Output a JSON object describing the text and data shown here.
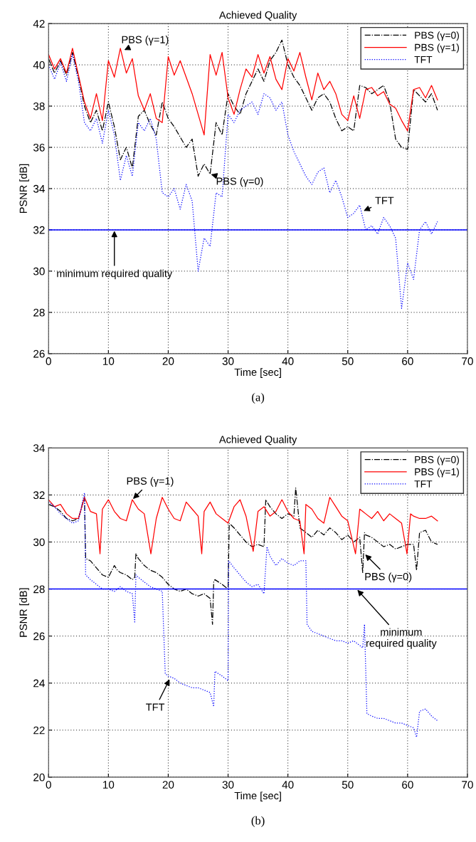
{
  "chart_data": [
    {
      "type": "line",
      "title": "Achieved Quality",
      "xlabel": "Time [sec]",
      "ylabel": "PSNR [dB]",
      "xlim": [
        0,
        70
      ],
      "xticks": [
        0,
        10,
        20,
        30,
        40,
        50,
        60,
        70
      ],
      "ylim": [
        26,
        42
      ],
      "yticks": [
        26,
        28,
        30,
        32,
        34,
        36,
        38,
        40,
        42
      ],
      "grid": true,
      "legend": "top right",
      "series": [
        {
          "name": "PBS (γ=0)",
          "color": "#000000",
          "line_style": "dashdot",
          "x": [
            0,
            1,
            2,
            3,
            4,
            5,
            6,
            7,
            8,
            9,
            10,
            11,
            12,
            13,
            14,
            15,
            16,
            17,
            18,
            19,
            20,
            21,
            22,
            23,
            24,
            25,
            26,
            27,
            28,
            29,
            30,
            31,
            32,
            33,
            34,
            35,
            36,
            37,
            38,
            39,
            40,
            41,
            42,
            43,
            44,
            45,
            46,
            47,
            48,
            49,
            50,
            51,
            52,
            53,
            54,
            55,
            56,
            57,
            58,
            59,
            60,
            61,
            62,
            63,
            64,
            65
          ],
          "values": [
            40.3,
            39.6,
            40.2,
            39.5,
            40.6,
            39.4,
            38.0,
            37.2,
            37.8,
            36.8,
            38.2,
            37.0,
            35.4,
            36.0,
            35.0,
            37.5,
            37.8,
            37.1,
            36.6,
            38.2,
            37.4,
            37.0,
            36.5,
            36.0,
            36.4,
            34.6,
            35.2,
            34.7,
            37.2,
            36.6,
            38.6,
            38.0,
            37.6,
            38.6,
            39.2,
            39.8,
            39.2,
            40.2,
            40.6,
            41.2,
            40.0,
            39.4,
            39.0,
            38.4,
            37.8,
            38.4,
            38.6,
            38.2,
            37.4,
            36.8,
            37.0,
            36.8,
            39.0,
            38.9,
            38.6,
            38.8,
            39.0,
            38.2,
            36.4,
            36.0,
            35.9,
            38.8,
            38.5,
            38.2,
            38.6,
            37.8
          ]
        },
        {
          "name": "PBS (γ=1)",
          "color": "#ff0000",
          "line_style": "solid",
          "x": [
            0,
            1,
            2,
            3,
            4,
            5,
            6,
            7,
            8,
            9,
            10,
            11,
            12,
            13,
            14,
            15,
            16,
            17,
            18,
            19,
            20,
            21,
            22,
            23,
            24,
            25,
            26,
            27,
            28,
            29,
            30,
            31,
            32,
            33,
            34,
            35,
            36,
            37,
            38,
            39,
            40,
            41,
            42,
            43,
            44,
            45,
            46,
            47,
            48,
            49,
            50,
            51,
            52,
            53,
            54,
            55,
            56,
            57,
            58,
            59,
            60,
            61,
            62,
            63,
            64,
            65
          ],
          "values": [
            40.5,
            39.8,
            40.3,
            39.6,
            40.8,
            39.5,
            38.2,
            37.4,
            38.6,
            37.3,
            40.2,
            39.4,
            40.8,
            39.6,
            40.3,
            38.5,
            37.8,
            38.6,
            37.4,
            37.2,
            40.4,
            39.5,
            40.2,
            39.4,
            38.6,
            37.6,
            36.6,
            40.5,
            39.5,
            40.6,
            38.4,
            37.6,
            38.8,
            39.8,
            39.4,
            40.5,
            39.6,
            40.4,
            39.3,
            38.8,
            40.3,
            39.7,
            40.6,
            39.4,
            38.3,
            39.6,
            38.8,
            39.2,
            38.6,
            37.6,
            37.3,
            38.5,
            37.4,
            38.8,
            38.9,
            38.5,
            38.7,
            38.1,
            37.9,
            37.3,
            36.8,
            38.8,
            38.9,
            38.4,
            39.0,
            38.3
          ]
        },
        {
          "name": "TFT",
          "color": "#0000ff",
          "line_style": "dotted",
          "x": [
            0,
            1,
            2,
            3,
            4,
            5,
            6,
            7,
            8,
            9,
            10,
            11,
            12,
            13,
            14,
            15,
            16,
            17,
            18,
            19,
            20,
            21,
            22,
            23,
            24,
            25,
            26,
            27,
            28,
            29,
            30,
            31,
            32,
            33,
            34,
            35,
            36,
            37,
            38,
            39,
            40,
            41,
            42,
            43,
            44,
            45,
            46,
            47,
            48,
            49,
            50,
            51,
            52,
            53,
            54,
            55,
            56,
            57,
            58,
            59,
            60,
            61,
            62,
            63,
            64,
            65
          ],
          "values": [
            40.0,
            39.3,
            40.1,
            39.2,
            40.5,
            39.2,
            37.2,
            36.8,
            37.4,
            36.2,
            37.8,
            36.6,
            34.4,
            35.6,
            34.6,
            37.2,
            36.8,
            37.4,
            36.4,
            33.8,
            33.6,
            34.0,
            33.0,
            34.2,
            33.4,
            30.0,
            31.6,
            31.2,
            33.8,
            33.6,
            37.6,
            37.2,
            37.8,
            38.0,
            38.2,
            37.6,
            38.6,
            38.4,
            37.8,
            38.2,
            36.6,
            35.8,
            35.2,
            34.6,
            34.2,
            34.8,
            35.0,
            33.8,
            34.4,
            33.6,
            32.6,
            32.8,
            33.2,
            32.0,
            32.2,
            31.8,
            32.6,
            32.2,
            31.6,
            28.2,
            30.4,
            29.6,
            32.0,
            32.4,
            31.8,
            32.4
          ]
        }
      ],
      "ref_lines": [
        {
          "axis": "y",
          "value": 32,
          "color": "#0000ff",
          "line_style": "solid"
        }
      ],
      "annotations": [
        {
          "text": "PBS (γ=1)",
          "x": 12.5,
          "y": 40.7
        },
        {
          "text": "PBS (γ=0)",
          "x": 27,
          "y": 34.7
        },
        {
          "text": "TFT",
          "x": 52.5,
          "y": 32.9
        },
        {
          "text": "minimum required quality",
          "x": 11,
          "y": 32
        },
        "(a)"
      ]
    },
    {
      "type": "line",
      "title": "Achieved Quality",
      "xlabel": "Time [sec]",
      "ylabel": "PSNR [dB]",
      "xlim": [
        0,
        70
      ],
      "xticks": [
        0,
        10,
        20,
        30,
        40,
        50,
        60,
        70
      ],
      "ylim": [
        20,
        34
      ],
      "yticks": [
        20,
        22,
        24,
        26,
        28,
        30,
        32,
        34
      ],
      "grid": true,
      "legend": "top right",
      "series": [
        {
          "name": "PBS (γ=0)",
          "color": "#000000",
          "line_style": "dashdot",
          "x": [
            0,
            1,
            2,
            3,
            4,
            5,
            6,
            6.2,
            7,
            8,
            9,
            10,
            11,
            11.5,
            12,
            13,
            14,
            14.4,
            14.6,
            15,
            16,
            17,
            18,
            19,
            20,
            21,
            22,
            23,
            24,
            25,
            26,
            27,
            27.4,
            27.6,
            27.8,
            29,
            30,
            30.2,
            31,
            32,
            33,
            34,
            35,
            36,
            36.3,
            37,
            38,
            39,
            40,
            41,
            41.3,
            42,
            43,
            44,
            45,
            46,
            47,
            48,
            49,
            50,
            51,
            52,
            52.5,
            52.8,
            53,
            54,
            55,
            56,
            57,
            58,
            59,
            60,
            61,
            61.5,
            62,
            63,
            64,
            65
          ],
          "values": [
            31.6,
            31.5,
            31.3,
            31.0,
            30.9,
            31.0,
            31.9,
            29.3,
            29.2,
            28.9,
            28.6,
            28.5,
            29.0,
            28.8,
            28.7,
            28.6,
            28.4,
            28.5,
            29.5,
            29.3,
            29.0,
            28.8,
            28.7,
            28.5,
            28.2,
            28.0,
            27.9,
            28.0,
            27.8,
            27.7,
            27.8,
            27.6,
            26.5,
            28.3,
            28.4,
            28.2,
            28.0,
            30.8,
            30.6,
            30.3,
            30.0,
            29.8,
            29.9,
            29.8,
            31.8,
            31.5,
            31.2,
            31.0,
            31.2,
            31.1,
            32.3,
            30.6,
            30.4,
            30.2,
            30.5,
            30.3,
            30.6,
            30.4,
            30.1,
            30.3,
            30.0,
            30.2,
            28.7,
            30.4,
            30.3,
            30.2,
            30.0,
            29.8,
            29.9,
            29.7,
            29.8,
            29.9,
            29.9,
            28.8,
            30.4,
            30.5,
            30.0,
            29.9
          ]
        },
        {
          "name": "PBS (γ=1)",
          "color": "#ff0000",
          "line_style": "solid",
          "x": [
            0,
            1,
            2,
            3,
            4,
            5,
            6,
            7,
            8,
            8.6,
            9,
            10,
            11,
            12,
            13,
            14,
            15,
            16,
            17.1,
            18,
            19,
            20,
            21,
            22,
            23,
            24,
            25,
            25.6,
            26,
            27,
            28,
            29,
            30,
            31,
            32,
            33,
            34.2,
            35,
            36,
            37,
            38,
            39,
            40,
            41,
            42,
            42.7,
            43,
            44,
            45,
            46,
            47,
            48,
            49,
            50,
            51.3,
            52,
            53,
            54,
            55,
            56,
            57,
            58,
            59,
            59.9,
            60.5,
            61,
            62,
            63,
            64,
            65
          ],
          "values": [
            31.8,
            31.5,
            31.6,
            31.2,
            31.0,
            31.0,
            31.9,
            31.3,
            31.2,
            29.5,
            31.4,
            31.8,
            31.3,
            31.0,
            30.9,
            31.8,
            31.4,
            31.2,
            29.5,
            31.0,
            31.9,
            31.4,
            31.0,
            30.9,
            31.7,
            31.4,
            31.1,
            29.5,
            31.3,
            31.7,
            31.2,
            31.0,
            30.8,
            31.5,
            31.8,
            31.1,
            29.6,
            31.3,
            31.5,
            31.1,
            31.3,
            31.8,
            31.3,
            31.0,
            30.9,
            29.5,
            31.6,
            31.4,
            31.0,
            30.8,
            31.9,
            31.5,
            31.1,
            30.9,
            29.5,
            31.4,
            31.2,
            31.0,
            31.3,
            30.9,
            31.2,
            31.0,
            30.8,
            29.5,
            31.2,
            31.1,
            31.0,
            31.0,
            31.1,
            30.9
          ]
        },
        {
          "name": "TFT",
          "color": "#0000ff",
          "line_style": "dotted",
          "x": [
            0,
            1,
            2,
            3,
            4,
            5,
            6,
            6.2,
            7,
            8,
            9,
            10,
            11,
            12,
            13,
            14,
            14.4,
            14.6,
            15,
            16,
            17,
            18,
            19,
            19.5,
            20,
            21,
            22,
            23,
            24,
            25,
            26,
            27,
            27.6,
            27.8,
            29,
            30,
            30.1,
            31,
            32,
            33,
            34,
            35,
            36,
            36.5,
            37,
            38,
            39,
            40,
            41,
            42,
            43,
            43.2,
            44,
            45,
            46,
            47,
            48,
            49,
            50,
            51,
            52,
            52.5,
            52.8,
            53.2,
            54,
            55,
            56,
            57,
            58,
            59,
            60,
            61,
            61.5,
            62,
            63,
            64,
            65
          ],
          "values": [
            31.7,
            31.5,
            31.2,
            31.0,
            30.8,
            30.9,
            32.1,
            28.6,
            28.4,
            28.2,
            28.0,
            28.0,
            27.9,
            28.1,
            27.9,
            27.8,
            26.6,
            28.6,
            28.5,
            28.3,
            28.1,
            28.0,
            27.9,
            24.4,
            24.3,
            24.2,
            24.0,
            23.9,
            23.8,
            23.8,
            23.7,
            23.6,
            23.0,
            24.5,
            24.3,
            24.1,
            29.2,
            28.9,
            28.6,
            28.3,
            28.1,
            28.2,
            27.8,
            29.8,
            29.4,
            29.0,
            29.3,
            29.1,
            29.0,
            29.2,
            29.2,
            26.5,
            26.2,
            26.1,
            26.0,
            25.9,
            25.8,
            25.8,
            25.7,
            25.8,
            25.6,
            25.5,
            26.5,
            22.7,
            22.6,
            22.5,
            22.5,
            22.4,
            22.3,
            22.3,
            22.2,
            22.1,
            21.7,
            22.8,
            22.9,
            22.6,
            22.4
          ]
        }
      ],
      "ref_lines": [
        {
          "axis": "y",
          "value": 28,
          "color": "#0000ff",
          "line_style": "solid"
        }
      ],
      "annotations": [
        {
          "text": "PBS (γ=1)",
          "x": 14,
          "y": 31.8
        },
        {
          "text": "TFT",
          "x": 20.3,
          "y": 24.2
        },
        {
          "text": "PBS (γ=0)",
          "x": 52.8,
          "y": 29.5
        },
        {
          "text": "minimum\nrequired quality",
          "x": 51.5,
          "y": 28
        },
        "(b)"
      ]
    }
  ]
}
